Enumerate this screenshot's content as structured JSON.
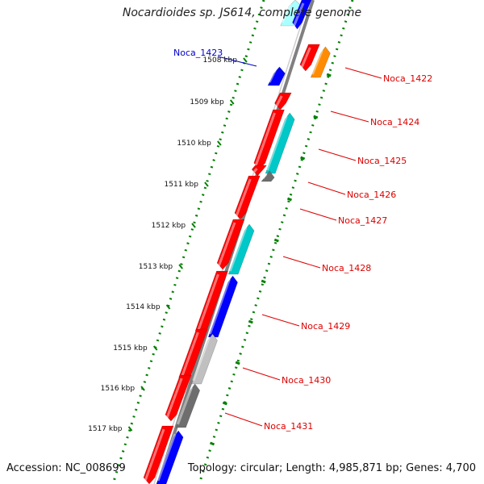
{
  "title": "Nocardioides sp. JS614, complete genome",
  "accession": "Accession: NC_008699",
  "topology": "Topology: circular; Length: 4,985,871 bp; Genes: 4,700",
  "colors": {
    "forward_gene": "#ff0000",
    "blue_gene": "#0000ff",
    "cyan_gene": "#00c8c8",
    "orange_gene": "#ff8c00",
    "gray_gene": "#6e6e6e",
    "light_gray_gene": "#c0c0c0",
    "backbone": "#808080",
    "tick_dots": "#008000",
    "red_label": "#dd0000",
    "blue_label": "#0000cc"
  },
  "scale_labels": [
    "1508 kbp",
    "1509 kbp",
    "1510 kbp",
    "1511 kbp",
    "1512 kbp",
    "1513 kbp",
    "1514 kbp",
    "1515 kbp",
    "1516 kbp",
    "1517 kbp"
  ],
  "gene_labels": [
    {
      "name": "Noca_1423",
      "color": "blue"
    },
    {
      "name": "Noca_1422",
      "color": "red"
    },
    {
      "name": "Noca_1424",
      "color": "red"
    },
    {
      "name": "Noca_1425",
      "color": "red"
    },
    {
      "name": "Noca_1426",
      "color": "red"
    },
    {
      "name": "Noca_1427",
      "color": "red"
    },
    {
      "name": "Noca_1428",
      "color": "red"
    },
    {
      "name": "Noca_1429",
      "color": "red"
    },
    {
      "name": "Noca_1430",
      "color": "red"
    },
    {
      "name": "Noca_1431",
      "color": "red"
    }
  ]
}
